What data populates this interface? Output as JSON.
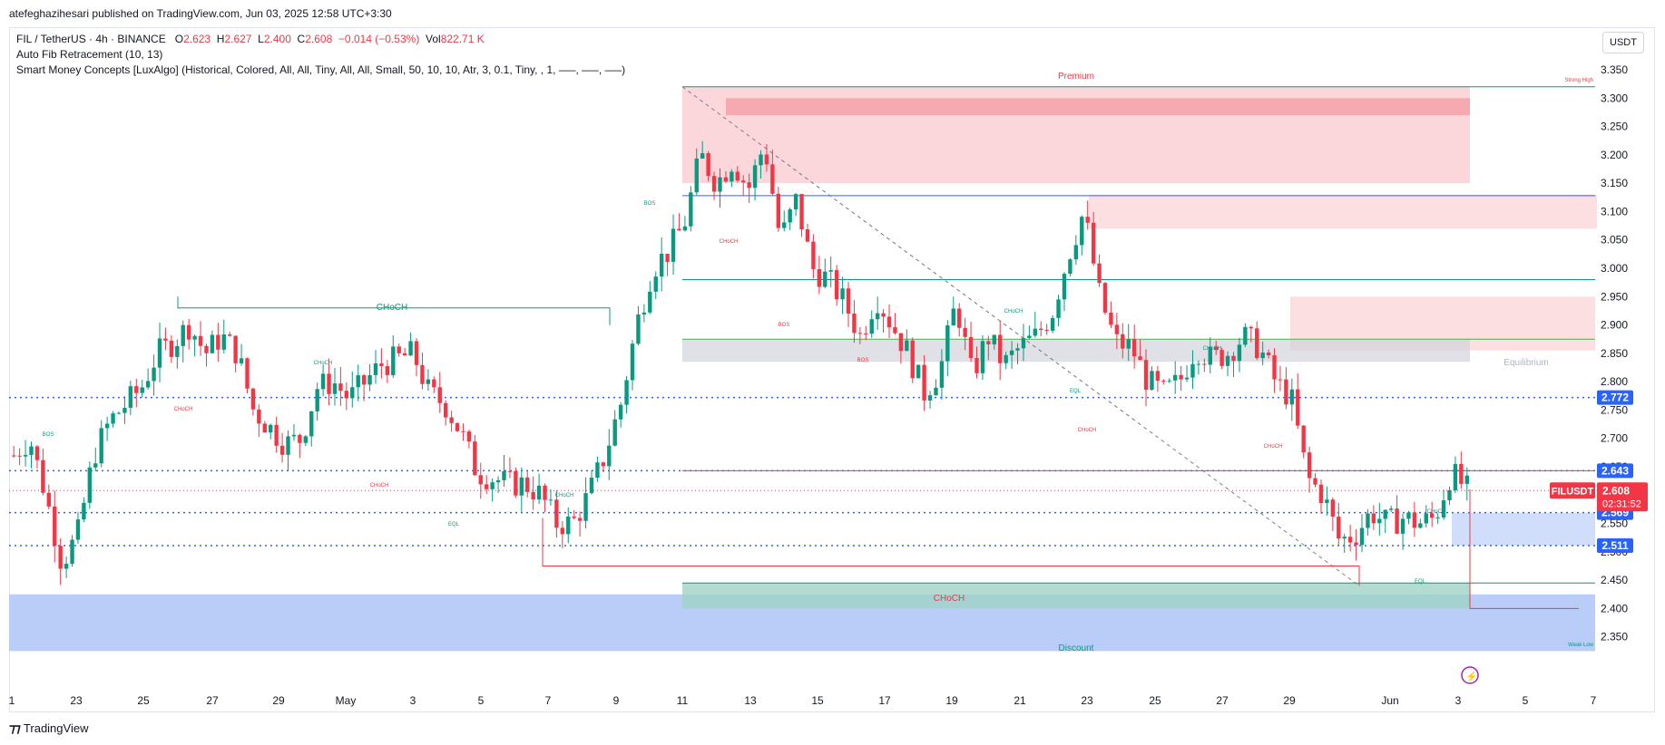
{
  "header": {
    "publish_line": "atefeghazihesari published on TradingView.com, Jun 03, 2025 12:58 UTC+3:30",
    "symbol_line": "FIL / TetherUS · 4h · BINANCE",
    "ohlc": {
      "o_label": "O",
      "o": "2.623",
      "h_label": "H",
      "h": "2.627",
      "l_label": "L",
      "l": "2.400",
      "c_label": "C",
      "c": "2.608",
      "change": "−0.014 (−0.53%)",
      "vol_label": "Vol",
      "vol": "822.71 K"
    },
    "indicator_1": "Auto Fib Retracement (10, 13)",
    "indicator_2": "Smart Money Concepts [LuxAlgo] (Historical, Colored, All, All, Tiny, All, All, Small, 50, 10, 10, Atr, 3, 0.1, Tiny, , 1, —–, —–, —–)",
    "currency": "USDT",
    "footer_logo": "TradingView"
  },
  "colors": {
    "bull": "#089981",
    "bear": "#f23645",
    "zone_red": "#f7b7bd",
    "zone_blue": "#b2c8f8",
    "zone_grey": "#d1d4dc",
    "fib_blue": "#2962ff"
  },
  "chart_data": {
    "type": "candlestick",
    "title": "FIL / TetherUS · 4h · BINANCE",
    "ylim": [
      2.3,
      3.35
    ],
    "y_ticks": [
      "3.350",
      "3.300",
      "3.250",
      "3.200",
      "3.150",
      "3.100",
      "3.050",
      "3.000",
      "2.950",
      "2.900",
      "2.850",
      "2.800",
      "2.750",
      "2.700",
      "2.650",
      "2.600",
      "2.550",
      "2.500",
      "2.450",
      "2.400",
      "2.350"
    ],
    "x_ticks": [
      "1",
      "23",
      "25",
      "27",
      "29",
      "May",
      "3",
      "5",
      "7",
      "9",
      "11",
      "13",
      "15",
      "17",
      "19",
      "21",
      "23",
      "25",
      "27",
      "29",
      "Jun",
      "3",
      "5",
      "7"
    ],
    "price_tags": [
      {
        "value": "2.772",
        "color": "#2962ff"
      },
      {
        "value": "2.643",
        "color": "#2962ff"
      },
      {
        "value": "2.569",
        "color": "#2962ff"
      },
      {
        "value": "2.511",
        "color": "#2962ff"
      }
    ],
    "current_price": {
      "symbol": "FILUSDT",
      "value": "2.608",
      "countdown": "02:31:52"
    },
    "close_series_anchor_prices": [
      2.67,
      2.7,
      2.6,
      2.48,
      2.53,
      2.67,
      2.73,
      2.76,
      2.79,
      2.85,
      2.87,
      2.9,
      2.85,
      2.88,
      2.85,
      2.75,
      2.72,
      2.69,
      2.7,
      2.79,
      2.8,
      2.77,
      2.8,
      2.83,
      2.84,
      2.85,
      2.78,
      2.76,
      2.71,
      2.64,
      2.63,
      2.62,
      2.62,
      2.6,
      2.55,
      2.55,
      2.6,
      2.67,
      2.76,
      2.9,
      3.0,
      3.03,
      3.08,
      3.2,
      3.15,
      3.19,
      3.14,
      3.22,
      3.05,
      3.12,
      3.0,
      2.98,
      2.94,
      2.88,
      2.95,
      2.9,
      2.85,
      2.78,
      2.82,
      2.94,
      2.81,
      2.88,
      2.83,
      2.86,
      2.88,
      2.92,
      3.02,
      3.1,
      2.95,
      2.87,
      2.86,
      2.8,
      2.78,
      2.8,
      2.86,
      2.84,
      2.85,
      2.88,
      2.86,
      2.8,
      2.77,
      2.63,
      2.6,
      2.52,
      2.53,
      2.57,
      2.55,
      2.56,
      2.55,
      2.56,
      2.64,
      2.61
    ],
    "labels": {
      "premium": "Premium",
      "equilibrium": "Equilibrium",
      "discount": "Discount",
      "strong_high": "Strong High",
      "weak_low": "Weak Low",
      "choch_big_top": "CHoCH",
      "choch_big_bottom": "CHoCH",
      "bos": "BOS",
      "choch": "CHoCH",
      "eql": "EQL"
    }
  }
}
